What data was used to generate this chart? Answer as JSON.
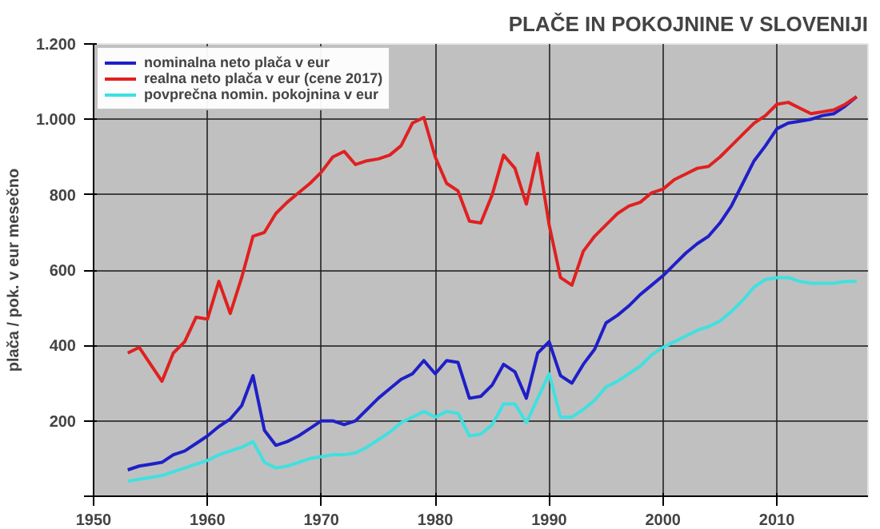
{
  "chart_data": {
    "type": "line",
    "title": "PLAČE IN POKOJNINE V SLOVENIJI",
    "ylabel": "plača / pok. v eur mesečno",
    "x": [
      1953,
      1954,
      1955,
      1956,
      1957,
      1958,
      1959,
      1960,
      1961,
      1962,
      1963,
      1964,
      1965,
      1966,
      1967,
      1968,
      1969,
      1970,
      1971,
      1972,
      1973,
      1974,
      1975,
      1976,
      1977,
      1978,
      1979,
      1980,
      1981,
      1982,
      1983,
      1984,
      1985,
      1986,
      1987,
      1988,
      1989,
      1990,
      1991,
      1992,
      1993,
      1994,
      1995,
      1996,
      1997,
      1998,
      1999,
      2000,
      2001,
      2002,
      2003,
      2004,
      2005,
      2006,
      2007,
      2008,
      2009,
      2010,
      2011,
      2012,
      2013,
      2014,
      2015,
      2016,
      2017
    ],
    "series": [
      {
        "name": "nominalna neto plača v eur",
        "color": "#1f1fc8",
        "values": [
          70,
          80,
          85,
          90,
          110,
          120,
          140,
          160,
          185,
          205,
          240,
          320,
          175,
          135,
          145,
          160,
          180,
          200,
          200,
          190,
          200,
          230,
          260,
          285,
          310,
          325,
          360,
          325,
          360,
          355,
          260,
          265,
          295,
          350,
          330,
          260,
          380,
          410,
          320,
          300,
          350,
          390,
          460,
          480,
          505,
          535,
          560,
          585,
          615,
          645,
          670,
          690,
          725,
          770,
          830,
          890,
          930,
          975,
          990,
          995,
          1000,
          1010,
          1015,
          1035,
          1060
        ]
      },
      {
        "name": "realna neto plača v eur (cene 2017)",
        "color": "#e02020",
        "values": [
          380,
          395,
          350,
          305,
          380,
          410,
          475,
          470,
          570,
          485,
          580,
          690,
          700,
          750,
          780,
          805,
          830,
          860,
          900,
          915,
          880,
          890,
          895,
          905,
          930,
          990,
          1005,
          900,
          830,
          810,
          730,
          725,
          800,
          905,
          870,
          775,
          910,
          720,
          580,
          560,
          650,
          690,
          720,
          750,
          770,
          780,
          805,
          815,
          840,
          855,
          870,
          875,
          900,
          930,
          960,
          990,
          1010,
          1040,
          1045,
          1030,
          1015,
          1020,
          1025,
          1040,
          1060
        ]
      },
      {
        "name": "povprečna nomin. pokojnina v eur",
        "color": "#40e0e0",
        "values": [
          40,
          45,
          50,
          55,
          65,
          75,
          85,
          95,
          110,
          120,
          130,
          145,
          90,
          75,
          80,
          90,
          100,
          105,
          110,
          110,
          115,
          130,
          150,
          170,
          195,
          210,
          225,
          210,
          225,
          220,
          160,
          165,
          190,
          245,
          245,
          195,
          260,
          325,
          210,
          210,
          230,
          255,
          290,
          305,
          325,
          345,
          375,
          395,
          410,
          425,
          440,
          450,
          465,
          490,
          520,
          555,
          575,
          580,
          580,
          570,
          565,
          565,
          565,
          570,
          570
        ]
      }
    ],
    "xlim": [
      1950,
      2018
    ],
    "xticks": [
      1950,
      1960,
      1970,
      1980,
      1990,
      2000,
      2010
    ],
    "ylim": [
      0,
      1200
    ],
    "yticks": [
      {
        "value": 0,
        "label": null
      },
      200,
      400,
      600,
      800,
      {
        "value": 1000,
        "label": "1.000"
      },
      {
        "value": 1200,
        "label": "1.200"
      }
    ],
    "grid": true,
    "legend": "top left"
  }
}
